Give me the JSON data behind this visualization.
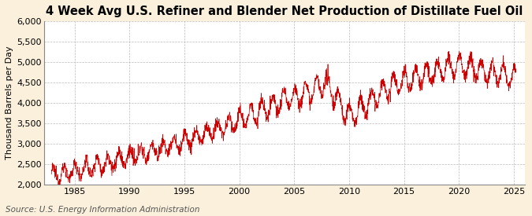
{
  "title": "4 Week Avg U.S. Refiner and Blender Net Production of Distillate Fuel Oil",
  "ylabel": "Thousand Barrels per Day",
  "source": "Source: U.S. Energy Information Administration",
  "line_color": "#CC0000",
  "background_color": "#FAF0DC",
  "plot_bg_color": "#FFFFFF",
  "grid_color": "#AAAAAA",
  "ylim": [
    2000,
    6000
  ],
  "yticks": [
    2000,
    2500,
    3000,
    3500,
    4000,
    4500,
    5000,
    5500,
    6000
  ],
  "xlim_start": 1982.2,
  "xlim_end": 2026.0,
  "xticks": [
    1985,
    1990,
    1995,
    2000,
    2005,
    2010,
    2015,
    2020,
    2025
  ],
  "title_fontsize": 10.5,
  "label_fontsize": 8,
  "tick_fontsize": 8,
  "source_fontsize": 7.5
}
